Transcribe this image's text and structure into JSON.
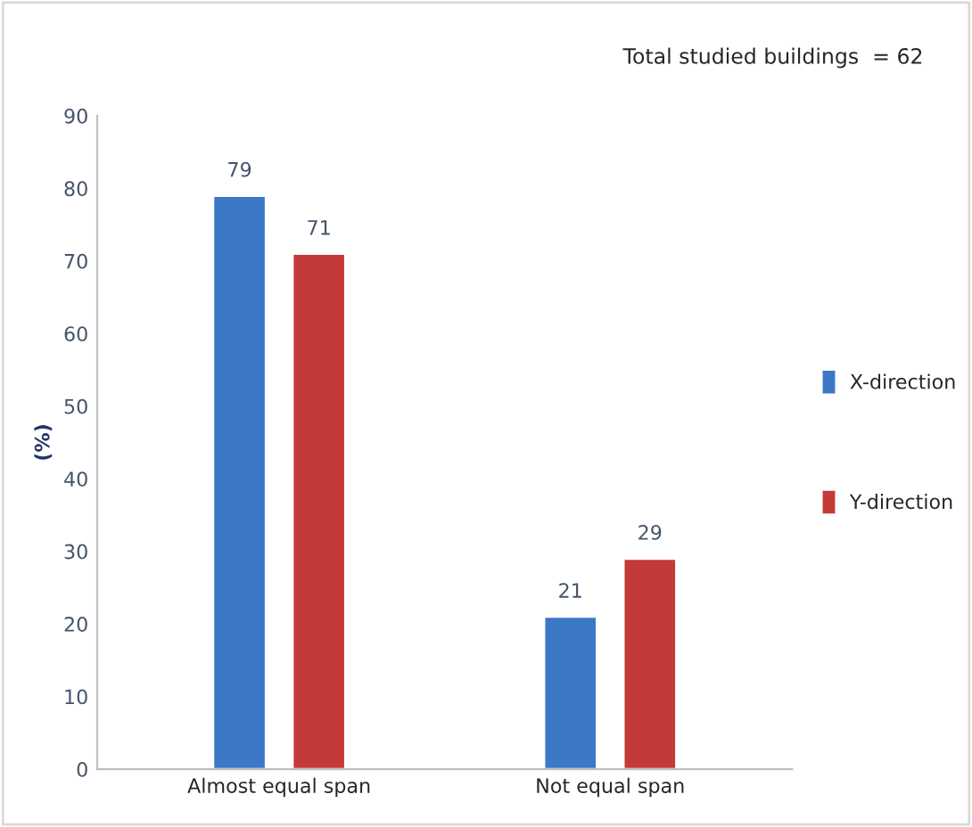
{
  "chart_data": {
    "type": "bar",
    "ylabel": "(%)",
    "annotations": [
      "Total studied buildings  = 62"
    ],
    "categories": [
      "Almost equal span",
      "Not equal span"
    ],
    "series": [
      {
        "name": "X-direction",
        "color": "#3b78c6",
        "values": [
          79,
          21
        ]
      },
      {
        "name": "Y-direction",
        "color": "#c43a38",
        "values": [
          71,
          29
        ]
      }
    ],
    "ylim": [
      0,
      90
    ],
    "yticks": [
      0,
      10,
      20,
      30,
      40,
      50,
      60,
      70,
      80,
      90
    ],
    "data_labels": true,
    "legend": "right",
    "grid": false
  }
}
